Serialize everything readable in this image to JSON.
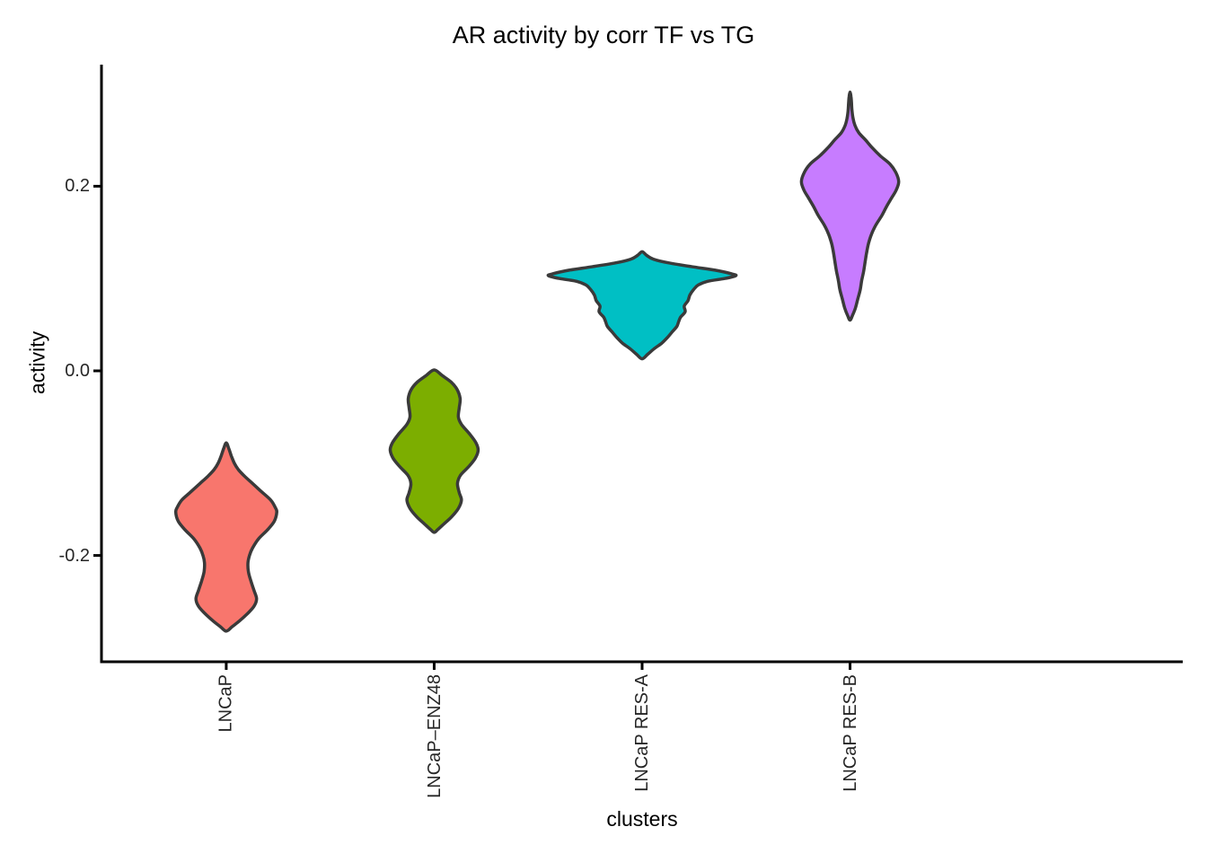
{
  "title": "AR activity by corr TF vs TG",
  "chart_data": {
    "type": "violin",
    "title": "AR activity by corr TF vs TG",
    "xlabel": "clusters",
    "ylabel": "activity",
    "ylim": [
      -0.315,
      0.332
    ],
    "yticks": [
      {
        "value": 0.2,
        "label": "0.2"
      },
      {
        "value": 0.0,
        "label": "0.0"
      },
      {
        "value": -0.2,
        "label": "-0.2"
      }
    ],
    "grid": false,
    "legend": false,
    "background_color": "#FFFFFF",
    "axis_color": "#000000",
    "outline_color": "#3A3A3A",
    "categories": [
      "LNCaP",
      "LNCaP–ENZ48",
      "LNCaP RES-A",
      "LNCaP RES-B"
    ],
    "series": [
      {
        "name": "LNCaP",
        "color": "#F8766D",
        "activity_min": -0.282,
        "activity_max": -0.078,
        "activity_widest": -0.153,
        "relative_width": 0.54,
        "profile": [
          [
            -0.078,
            0.0
          ],
          [
            -0.084,
            0.05
          ],
          [
            -0.092,
            0.1
          ],
          [
            -0.1,
            0.16
          ],
          [
            -0.107,
            0.24
          ],
          [
            -0.114,
            0.36
          ],
          [
            -0.122,
            0.52
          ],
          [
            -0.131,
            0.7
          ],
          [
            -0.14,
            0.88
          ],
          [
            -0.148,
            0.97
          ],
          [
            -0.153,
            1.0
          ],
          [
            -0.163,
            0.95
          ],
          [
            -0.172,
            0.82
          ],
          [
            -0.182,
            0.64
          ],
          [
            -0.192,
            0.52
          ],
          [
            -0.2,
            0.46
          ],
          [
            -0.208,
            0.43
          ],
          [
            -0.218,
            0.44
          ],
          [
            -0.228,
            0.49
          ],
          [
            -0.238,
            0.55
          ],
          [
            -0.247,
            0.6
          ],
          [
            -0.255,
            0.55
          ],
          [
            -0.263,
            0.42
          ],
          [
            -0.271,
            0.26
          ],
          [
            -0.277,
            0.12
          ],
          [
            -0.282,
            0.0
          ]
        ]
      },
      {
        "name": "LNCaP–ENZ48",
        "color": "#7CAE00",
        "activity_min": -0.175,
        "activity_max": 0.001,
        "activity_widest": -0.086,
        "relative_width": 0.47,
        "profile": [
          [
            0.001,
            0.0
          ],
          [
            -0.005,
            0.18
          ],
          [
            -0.012,
            0.38
          ],
          [
            -0.02,
            0.52
          ],
          [
            -0.03,
            0.59
          ],
          [
            -0.04,
            0.57
          ],
          [
            -0.05,
            0.55
          ],
          [
            -0.058,
            0.62
          ],
          [
            -0.068,
            0.8
          ],
          [
            -0.078,
            0.95
          ],
          [
            -0.086,
            1.0
          ],
          [
            -0.095,
            0.93
          ],
          [
            -0.104,
            0.78
          ],
          [
            -0.113,
            0.6
          ],
          [
            -0.122,
            0.53
          ],
          [
            -0.132,
            0.57
          ],
          [
            -0.14,
            0.62
          ],
          [
            -0.149,
            0.55
          ],
          [
            -0.158,
            0.4
          ],
          [
            -0.166,
            0.22
          ],
          [
            -0.172,
            0.08
          ],
          [
            -0.175,
            0.0
          ]
        ]
      },
      {
        "name": "LNCaP RES-A",
        "color": "#00BFC4",
        "activity_min": 0.013,
        "activity_max": 0.129,
        "activity_widest": 0.103,
        "relative_width": 1.0,
        "profile": [
          [
            0.129,
            0.0
          ],
          [
            0.125,
            0.05
          ],
          [
            0.121,
            0.12
          ],
          [
            0.117,
            0.28
          ],
          [
            0.113,
            0.52
          ],
          [
            0.109,
            0.78
          ],
          [
            0.105,
            0.96
          ],
          [
            0.103,
            1.0
          ],
          [
            0.1,
            0.88
          ],
          [
            0.097,
            0.7
          ],
          [
            0.093,
            0.6
          ],
          [
            0.088,
            0.55
          ],
          [
            0.082,
            0.51
          ],
          [
            0.076,
            0.49
          ],
          [
            0.07,
            0.45
          ],
          [
            0.064,
            0.46
          ],
          [
            0.058,
            0.41
          ],
          [
            0.053,
            0.39
          ],
          [
            0.048,
            0.37
          ],
          [
            0.042,
            0.32
          ],
          [
            0.036,
            0.27
          ],
          [
            0.03,
            0.21
          ],
          [
            0.024,
            0.13
          ],
          [
            0.018,
            0.06
          ],
          [
            0.013,
            0.0
          ]
        ]
      },
      {
        "name": "LNCaP RES-B",
        "color": "#C77CFF",
        "activity_min": 0.055,
        "activity_max": 0.302,
        "activity_widest": 0.205,
        "relative_width": 0.52,
        "profile": [
          [
            0.302,
            0.0
          ],
          [
            0.297,
            0.02
          ],
          [
            0.29,
            0.03
          ],
          [
            0.282,
            0.04
          ],
          [
            0.274,
            0.06
          ],
          [
            0.266,
            0.1
          ],
          [
            0.258,
            0.18
          ],
          [
            0.25,
            0.32
          ],
          [
            0.242,
            0.45
          ],
          [
            0.233,
            0.62
          ],
          [
            0.224,
            0.82
          ],
          [
            0.215,
            0.94
          ],
          [
            0.205,
            1.0
          ],
          [
            0.196,
            0.95
          ],
          [
            0.187,
            0.85
          ],
          [
            0.178,
            0.75
          ],
          [
            0.168,
            0.65
          ],
          [
            0.158,
            0.53
          ],
          [
            0.148,
            0.44
          ],
          [
            0.138,
            0.38
          ],
          [
            0.128,
            0.34
          ],
          [
            0.118,
            0.31
          ],
          [
            0.108,
            0.28
          ],
          [
            0.098,
            0.24
          ],
          [
            0.088,
            0.21
          ],
          [
            0.078,
            0.16
          ],
          [
            0.068,
            0.11
          ],
          [
            0.06,
            0.05
          ],
          [
            0.055,
            0.0
          ]
        ]
      }
    ]
  }
}
